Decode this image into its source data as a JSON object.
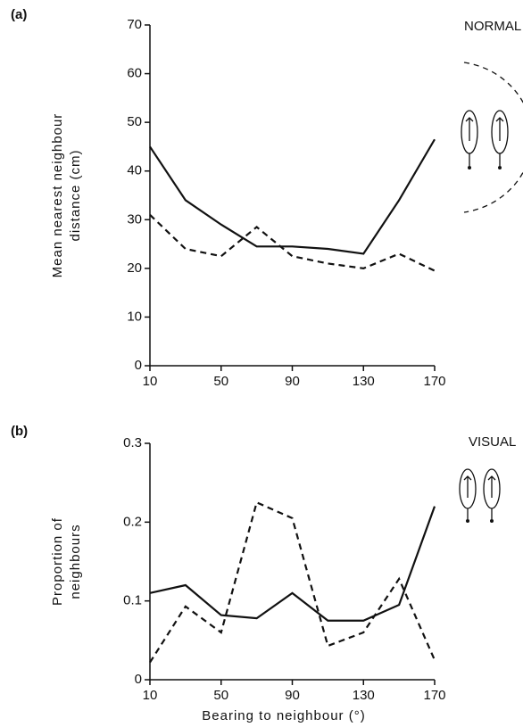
{
  "chart_data": [
    {
      "type": "line",
      "panel_label": "(a)",
      "annotation": "NORMAL",
      "ylabel": [
        "Mean nearest neighbour",
        "distance (cm)"
      ],
      "x": [
        10,
        30,
        50,
        70,
        90,
        110,
        130,
        150,
        170
      ],
      "series": [
        {
          "color": "#111111",
          "style": "solid",
          "values": [
            45,
            34,
            29,
            24.5,
            24.5,
            24,
            23,
            34,
            46.5
          ]
        },
        {
          "color": "#111111",
          "style": "dashed",
          "values": [
            31,
            24,
            22.5,
            28.5,
            22.5,
            21,
            20,
            23,
            19.5
          ]
        }
      ],
      "xlim": [
        10,
        170
      ],
      "xticks": [
        10,
        50,
        90,
        130,
        170
      ],
      "ylim": [
        0,
        70
      ],
      "yticks": [
        0,
        10,
        20,
        30,
        40,
        50,
        60,
        70
      ]
    },
    {
      "type": "line",
      "panel_label": "(b)",
      "annotation": "VISUAL",
      "ylabel": [
        "Proportion of",
        "neighbours"
      ],
      "xlabel": "Bearing to neighbour (°)",
      "x": [
        10,
        30,
        50,
        70,
        90,
        110,
        130,
        150,
        170
      ],
      "series": [
        {
          "color": "#111111",
          "style": "solid",
          "values": [
            0.11,
            0.12,
            0.082,
            0.078,
            0.11,
            0.075,
            0.075,
            0.095,
            0.22
          ]
        },
        {
          "color": "#111111",
          "style": "dashed",
          "values": [
            0.022,
            0.093,
            0.06,
            0.225,
            0.205,
            0.043,
            0.06,
            0.128,
            0.025
          ]
        }
      ],
      "xlim": [
        10,
        170
      ],
      "xticks": [
        10,
        50,
        90,
        130,
        170
      ],
      "ylim": [
        0,
        0.3
      ],
      "yticks": [
        0,
        0.1,
        0.2,
        0.3
      ]
    }
  ]
}
